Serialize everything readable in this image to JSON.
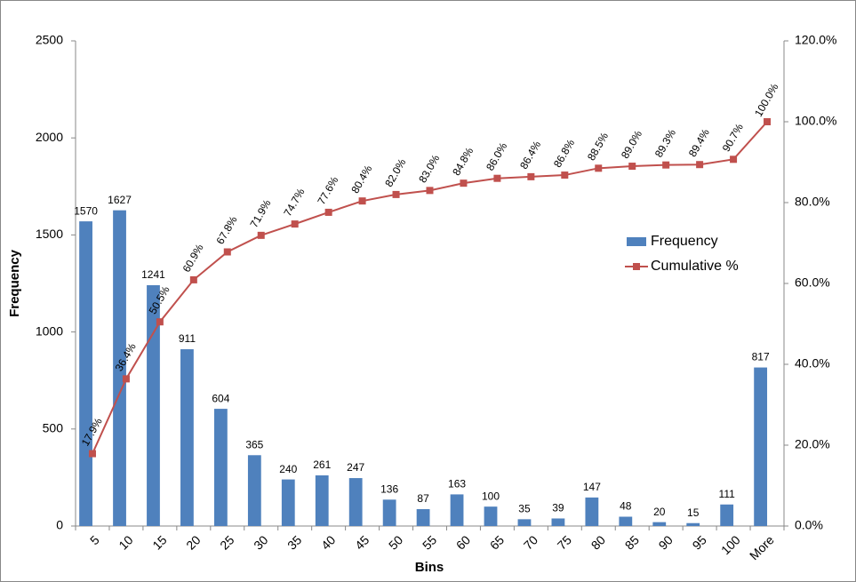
{
  "chart_data": {
    "type": "bar",
    "x_label": "Bins",
    "y_label": "Frequency",
    "categories": [
      "5",
      "10",
      "15",
      "20",
      "25",
      "30",
      "35",
      "40",
      "45",
      "50",
      "55",
      "60",
      "65",
      "70",
      "75",
      "80",
      "85",
      "90",
      "95",
      "100",
      "More"
    ],
    "series": [
      {
        "name": "Frequency",
        "type": "bar",
        "color": "#4f81bd",
        "values": [
          1570,
          1627,
          1241,
          911,
          604,
          365,
          240,
          261,
          247,
          136,
          87,
          163,
          100,
          35,
          39,
          147,
          48,
          20,
          15,
          111,
          817
        ]
      },
      {
        "name": "Cumulative %",
        "type": "line",
        "axis": "y2",
        "color": "#c0504d",
        "values": [
          17.9,
          36.4,
          50.5,
          60.9,
          67.8,
          71.9,
          74.7,
          77.6,
          80.4,
          82.0,
          83.0,
          84.8,
          86.0,
          86.4,
          86.8,
          88.5,
          89.0,
          89.3,
          89.4,
          90.7,
          100.0
        ],
        "value_labels": [
          "17.9%",
          "36.4%",
          "50.5%",
          "60.9%",
          "67.8%",
          "71.9%",
          "74.7%",
          "77.6%",
          "80.4%",
          "82.0%",
          "83.0%",
          "84.8%",
          "86.0%",
          "86.4%",
          "86.8%",
          "88.5%",
          "89.0%",
          "89.3%",
          "89.4%",
          "90.7%",
          "100.0%"
        ]
      }
    ],
    "ylim": [
      0,
      2500
    ],
    "yticks": [
      0,
      500,
      1000,
      1500,
      2000,
      2500
    ],
    "y2lim": [
      0,
      120
    ],
    "y2ticks": [
      {
        "value": 0,
        "label": "0.0%"
      },
      {
        "value": 20,
        "label": "20.0%"
      },
      {
        "value": 40,
        "label": "40.0%"
      },
      {
        "value": 60,
        "label": "60.0%"
      },
      {
        "value": 80,
        "label": "80.0%"
      },
      {
        "value": 100,
        "label": "100.0%"
      },
      {
        "value": 120,
        "label": "120.0%"
      }
    ],
    "legend": "right"
  }
}
